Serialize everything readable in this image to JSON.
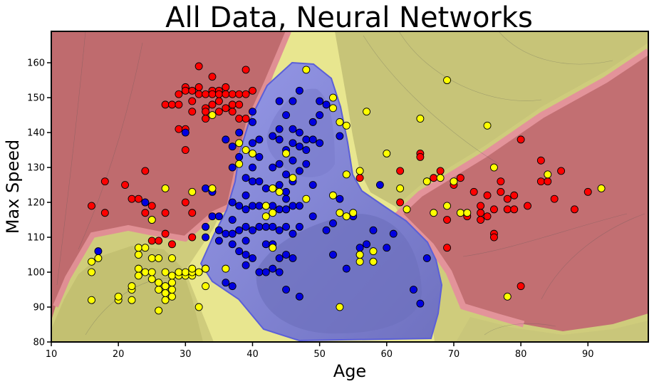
{
  "chart_data": {
    "type": "scatter",
    "title": "All Data, Neural Networks",
    "xlabel": "Age",
    "ylabel": "Max Speed",
    "xlim": [
      10,
      99
    ],
    "ylim": [
      80,
      169
    ],
    "xticks": [
      10,
      20,
      30,
      40,
      50,
      60,
      70,
      80,
      90
    ],
    "yticks": [
      80,
      90,
      100,
      110,
      120,
      130,
      140,
      150,
      160
    ],
    "grid": false,
    "legend": "none",
    "background": "decision regions (red, blue, yellow) with contour shading",
    "colors": {
      "red_point": "#ff0000",
      "blue_point": "#0000e0",
      "yellow_point": "#ffff00",
      "red_region": "#b85c60",
      "blue_region": "#7a7ccc",
      "yellow_region": "#c2c070"
    },
    "series": [
      {
        "color": "red",
        "points": [
          [
            16,
            119
          ],
          [
            18,
            117
          ],
          [
            18,
            126
          ],
          [
            21,
            125
          ],
          [
            22,
            121
          ],
          [
            23,
            121
          ],
          [
            24,
            129
          ],
          [
            24,
            117
          ],
          [
            24,
            120
          ],
          [
            25,
            119
          ],
          [
            25,
            115
          ],
          [
            25,
            109
          ],
          [
            26,
            109
          ],
          [
            27,
            111
          ],
          [
            27,
            117
          ],
          [
            27,
            148
          ],
          [
            28,
            108
          ],
          [
            28,
            148
          ],
          [
            29,
            141
          ],
          [
            29,
            148
          ],
          [
            29,
            151
          ],
          [
            30,
            153
          ],
          [
            30,
            152
          ],
          [
            30,
            135
          ],
          [
            30,
            141
          ],
          [
            30,
            120
          ],
          [
            31,
            117
          ],
          [
            31,
            110
          ],
          [
            31,
            152
          ],
          [
            31,
            149
          ],
          [
            31,
            146
          ],
          [
            32,
            159
          ],
          [
            32,
            151
          ],
          [
            32,
            153
          ],
          [
            33,
            147
          ],
          [
            33,
            144
          ],
          [
            33,
            151
          ],
          [
            33,
            146
          ],
          [
            34,
            152
          ],
          [
            34,
            151
          ],
          [
            34,
            156
          ],
          [
            34,
            148
          ],
          [
            35,
            152
          ],
          [
            35,
            149
          ],
          [
            35,
            151
          ],
          [
            35,
            146
          ],
          [
            36,
            151
          ],
          [
            36,
            147
          ],
          [
            36,
            153
          ],
          [
            37,
            151
          ],
          [
            37,
            146
          ],
          [
            37,
            148
          ],
          [
            38,
            144
          ],
          [
            38,
            151
          ],
          [
            38,
            148
          ],
          [
            39,
            158
          ],
          [
            39,
            144
          ],
          [
            39,
            151
          ],
          [
            40,
            152
          ],
          [
            45,
            118
          ],
          [
            56,
            127
          ],
          [
            62,
            129
          ],
          [
            62,
            120
          ],
          [
            65,
            134
          ],
          [
            65,
            133
          ],
          [
            66,
            126
          ],
          [
            67,
            127
          ],
          [
            68,
            129
          ],
          [
            69,
            115
          ],
          [
            69,
            107
          ],
          [
            70,
            125
          ],
          [
            71,
            127
          ],
          [
            72,
            116
          ],
          [
            73,
            123
          ],
          [
            74,
            115
          ],
          [
            74,
            119
          ],
          [
            74,
            117
          ],
          [
            75,
            122
          ],
          [
            75,
            116
          ],
          [
            76,
            111
          ],
          [
            76,
            110
          ],
          [
            76,
            118
          ],
          [
            77,
            126
          ],
          [
            77,
            123
          ],
          [
            78,
            118
          ],
          [
            78,
            121
          ],
          [
            79,
            122
          ],
          [
            79,
            118
          ],
          [
            80,
            138
          ],
          [
            80,
            96
          ],
          [
            81,
            119
          ],
          [
            83,
            132
          ],
          [
            83,
            126
          ],
          [
            84,
            126
          ],
          [
            85,
            121
          ],
          [
            86,
            129
          ],
          [
            88,
            118
          ],
          [
            90,
            123
          ]
        ]
      },
      {
        "color": "blue",
        "points": [
          [
            17,
            106
          ],
          [
            24,
            120
          ],
          [
            30,
            140
          ],
          [
            33,
            124
          ],
          [
            33,
            113
          ],
          [
            33,
            110
          ],
          [
            33,
            101
          ],
          [
            34,
            116
          ],
          [
            34,
            123
          ],
          [
            35,
            116
          ],
          [
            35,
            112
          ],
          [
            35,
            109
          ],
          [
            36,
            138
          ],
          [
            36,
            111
          ],
          [
            36,
            97
          ],
          [
            37,
            136
          ],
          [
            37,
            130
          ],
          [
            37,
            120
          ],
          [
            37,
            115
          ],
          [
            37,
            111
          ],
          [
            37,
            108
          ],
          [
            37,
            96
          ],
          [
            38,
            140
          ],
          [
            38,
            133
          ],
          [
            38,
            119
          ],
          [
            38,
            112
          ],
          [
            38,
            106
          ],
          [
            39,
            127
          ],
          [
            39,
            122
          ],
          [
            39,
            118
          ],
          [
            39,
            113
          ],
          [
            39,
            109
          ],
          [
            39,
            105
          ],
          [
            39,
            102
          ],
          [
            40,
            146
          ],
          [
            40,
            143
          ],
          [
            40,
            137
          ],
          [
            40,
            130
          ],
          [
            40,
            126
          ],
          [
            40,
            119
          ],
          [
            40,
            112
          ],
          [
            40,
            104
          ],
          [
            41,
            138
          ],
          [
            41,
            133
          ],
          [
            41,
            126
          ],
          [
            41,
            119
          ],
          [
            41,
            113
          ],
          [
            41,
            100
          ],
          [
            42,
            124
          ],
          [
            42,
            119
          ],
          [
            42,
            113
          ],
          [
            42,
            108
          ],
          [
            42,
            100
          ],
          [
            43,
            139
          ],
          [
            43,
            130
          ],
          [
            43,
            124
          ],
          [
            43,
            119
          ],
          [
            43,
            113
          ],
          [
            43,
            108
          ],
          [
            43,
            101
          ],
          [
            44,
            149
          ],
          [
            44,
            141
          ],
          [
            44,
            138
          ],
          [
            44,
            131
          ],
          [
            44,
            125
          ],
          [
            44,
            118
          ],
          [
            44,
            112
          ],
          [
            44,
            104
          ],
          [
            44,
            100
          ],
          [
            45,
            145
          ],
          [
            45,
            135
          ],
          [
            45,
            128
          ],
          [
            45,
            123
          ],
          [
            45,
            121
          ],
          [
            45,
            118
          ],
          [
            45,
            113
          ],
          [
            45,
            105
          ],
          [
            45,
            95
          ],
          [
            46,
            149
          ],
          [
            46,
            141
          ],
          [
            46,
            137
          ],
          [
            46,
            132
          ],
          [
            46,
            126
          ],
          [
            46,
            119
          ],
          [
            46,
            111
          ],
          [
            46,
            104
          ],
          [
            47,
            152
          ],
          [
            47,
            140
          ],
          [
            47,
            136
          ],
          [
            47,
            129
          ],
          [
            47,
            119
          ],
          [
            47,
            113
          ],
          [
            47,
            93
          ],
          [
            48,
            138
          ],
          [
            48,
            135
          ],
          [
            48,
            131
          ],
          [
            49,
            143
          ],
          [
            49,
            138
          ],
          [
            49,
            125
          ],
          [
            49,
            116
          ],
          [
            50,
            149
          ],
          [
            50,
            145
          ],
          [
            50,
            137
          ],
          [
            51,
            148
          ],
          [
            51,
            112
          ],
          [
            52,
            114
          ],
          [
            52,
            105
          ],
          [
            53,
            139
          ],
          [
            53,
            121
          ],
          [
            54,
            101
          ],
          [
            55,
            116
          ],
          [
            56,
            107
          ],
          [
            56,
            105
          ],
          [
            57,
            108
          ],
          [
            58,
            103
          ],
          [
            58,
            112
          ],
          [
            59,
            125
          ],
          [
            60,
            107
          ],
          [
            61,
            111
          ],
          [
            64,
            95
          ],
          [
            65,
            91
          ],
          [
            66,
            104
          ]
        ]
      },
      {
        "color": "yellow",
        "points": [
          [
            16,
            92
          ],
          [
            16,
            100
          ],
          [
            16,
            103
          ],
          [
            17,
            104
          ],
          [
            20,
            92
          ],
          [
            20,
            93
          ],
          [
            22,
            92
          ],
          [
            22,
            95
          ],
          [
            22,
            96
          ],
          [
            23,
            99
          ],
          [
            23,
            101
          ],
          [
            23,
            105
          ],
          [
            23,
            107
          ],
          [
            24,
            100
          ],
          [
            24,
            107
          ],
          [
            25,
            100
          ],
          [
            25,
            98
          ],
          [
            25,
            104
          ],
          [
            25,
            115
          ],
          [
            26,
            89
          ],
          [
            26,
            95
          ],
          [
            26,
            97
          ],
          [
            26,
            104
          ],
          [
            27,
            92
          ],
          [
            27,
            94
          ],
          [
            27,
            96
          ],
          [
            27,
            100
          ],
          [
            27,
            124
          ],
          [
            28,
            93
          ],
          [
            28,
            95
          ],
          [
            28,
            97
          ],
          [
            28,
            99
          ],
          [
            28,
            104
          ],
          [
            29,
            99
          ],
          [
            29,
            100
          ],
          [
            30,
            99
          ],
          [
            30,
            100
          ],
          [
            31,
            99
          ],
          [
            31,
            100
          ],
          [
            31,
            101
          ],
          [
            31,
            123
          ],
          [
            32,
            100
          ],
          [
            32,
            90
          ],
          [
            33,
            96
          ],
          [
            33,
            101
          ],
          [
            34,
            145
          ],
          [
            34,
            124
          ],
          [
            36,
            101
          ],
          [
            38,
            137
          ],
          [
            38,
            131
          ],
          [
            39,
            135
          ],
          [
            40,
            134
          ],
          [
            42,
            119
          ],
          [
            42,
            116
          ],
          [
            43,
            117
          ],
          [
            43,
            107
          ],
          [
            43,
            124
          ],
          [
            44,
            123
          ],
          [
            45,
            134
          ],
          [
            46,
            127
          ],
          [
            48,
            158
          ],
          [
            48,
            121
          ],
          [
            52,
            150
          ],
          [
            52,
            147
          ],
          [
            52,
            122
          ],
          [
            53,
            143
          ],
          [
            53,
            117
          ],
          [
            53,
            90
          ],
          [
            54,
            142
          ],
          [
            54,
            128
          ],
          [
            54,
            116
          ],
          [
            55,
            117
          ],
          [
            56,
            129
          ],
          [
            56,
            103
          ],
          [
            56,
            105
          ],
          [
            57,
            146
          ],
          [
            58,
            106
          ],
          [
            58,
            103
          ],
          [
            60,
            134
          ],
          [
            62,
            124
          ],
          [
            63,
            118
          ],
          [
            65,
            144
          ],
          [
            66,
            126
          ],
          [
            67,
            117
          ],
          [
            68,
            127
          ],
          [
            69,
            155
          ],
          [
            69,
            119
          ],
          [
            70,
            126
          ],
          [
            71,
            117
          ],
          [
            72,
            117
          ],
          [
            75,
            142
          ],
          [
            76,
            130
          ],
          [
            78,
            93
          ],
          [
            84,
            128
          ],
          [
            92,
            124
          ]
        ]
      }
    ]
  }
}
